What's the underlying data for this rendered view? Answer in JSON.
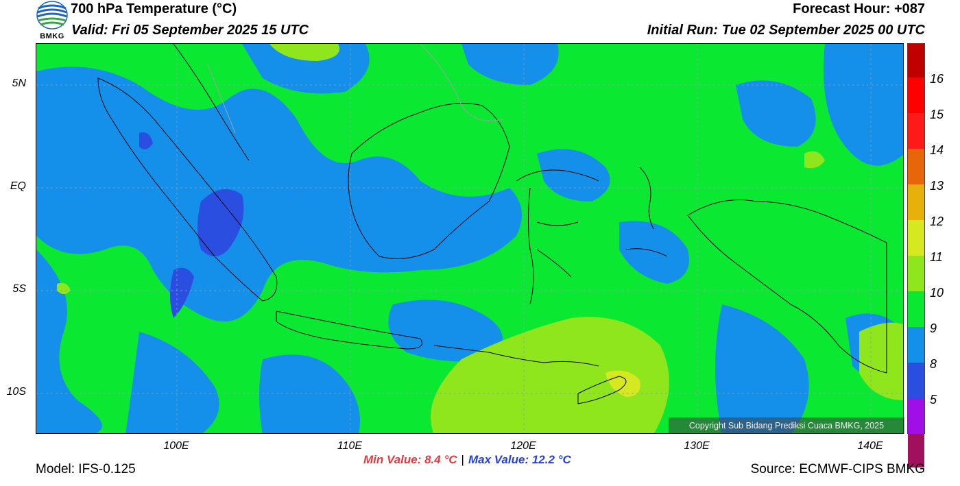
{
  "header": {
    "title": "700 hPa Temperature (°C)",
    "valid": "Valid: Fri 05 September 2025 15 UTC",
    "forecast_hour": "Forecast Hour: +087",
    "initial_run": "Initial Run: Tue 02 September 2025 00 UTC",
    "logo_text": "BMKG"
  },
  "axes": {
    "lat_labels": [
      "5N",
      "EQ",
      "5S",
      "10S"
    ],
    "lon_labels": [
      "100E",
      "110E",
      "120E",
      "130E",
      "140E"
    ]
  },
  "colorbar": {
    "labels": [
      "16",
      "15",
      "14",
      "13",
      "12",
      "11",
      "10",
      "9",
      "8",
      "5"
    ],
    "colors": [
      "#c00000",
      "#ff0000",
      "#ff1a1a",
      "#e85e0a",
      "#e8b00a",
      "#d6e81f",
      "#8fe61c",
      "#0be832",
      "#1590ea",
      "#2a4fe0",
      "#a00fe8",
      "#a0105c"
    ]
  },
  "footer": {
    "model": "Model: IFS-0.125",
    "source": "Source: ECMWF-CIPS BMKG",
    "min_value": "Min Value: 8.4 °C",
    "separator": "|",
    "max_value": "Max Value: 12.2 °C",
    "copyright": "Copyright Sub Bidang Prediksi Cuaca BMKG, 2025"
  },
  "colors": {
    "green_11": "#0be832",
    "blue_10": "#1590ea",
    "darkblue_9": "#2a4fe0",
    "lime_12": "#8fe61c",
    "yellow_13": "#d6e81f",
    "min_color": "#e8383d",
    "max_color": "#2340d8"
  }
}
